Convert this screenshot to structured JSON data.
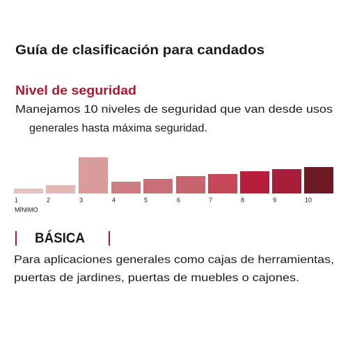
{
  "header": {
    "title": "Guía de clasificación para candados"
  },
  "section": {
    "heading": "Nivel de seguridad",
    "description": [
      "Manejamos 10 niveles de seguridad que van desde usos",
      "generales hasta máxima seguridad."
    ]
  },
  "scale": {
    "levels": [
      "1",
      "2",
      "3",
      "4",
      "5",
      "6",
      "7",
      "8",
      "9",
      "10"
    ],
    "min_label": "MÍNIMO"
  },
  "level": {
    "name": "BÁSICA",
    "description": [
      "Para aplicaciones generales como cajas de herramientas,",
      "puertas de jardines, puertas de muebles o cajones."
    ]
  }
}
